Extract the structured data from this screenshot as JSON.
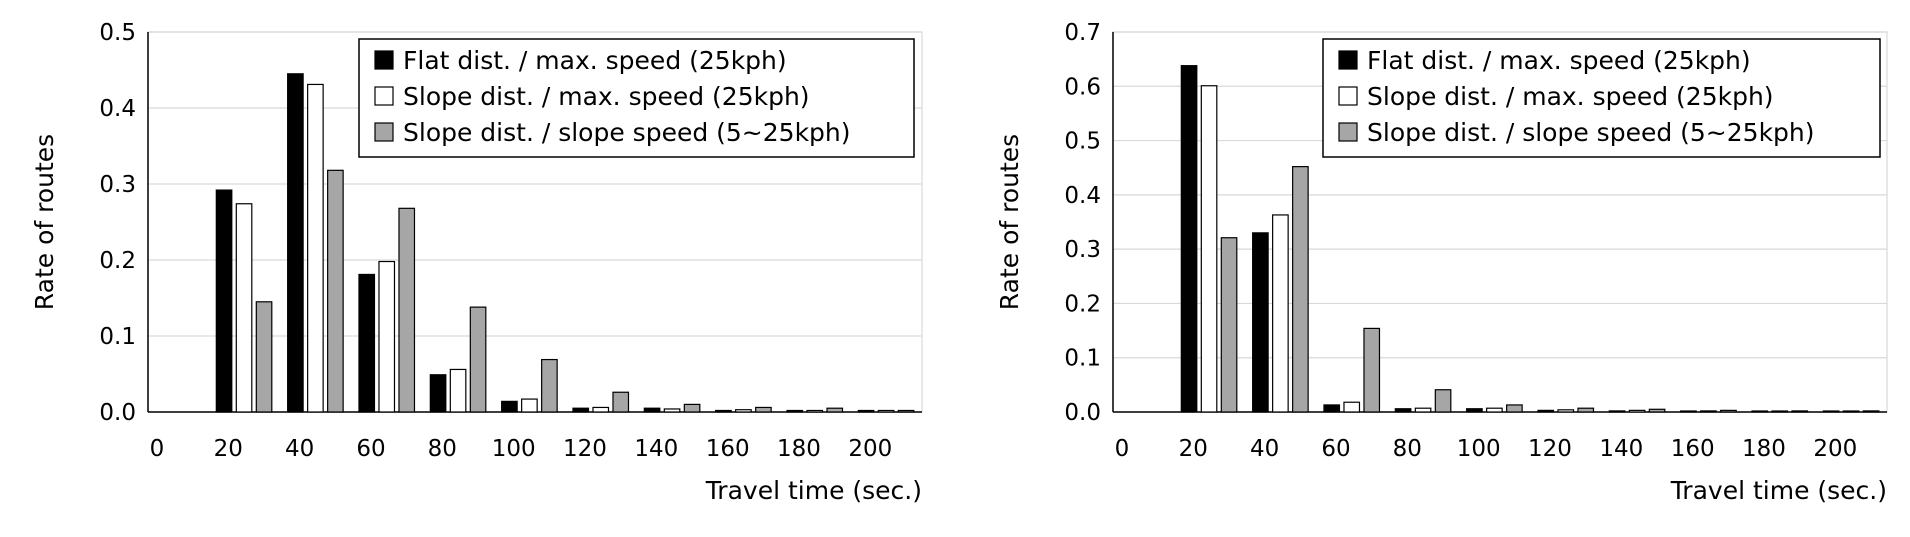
{
  "chart_data": [
    {
      "type": "bar",
      "title": "",
      "xlabel": "Travel time (sec.)",
      "ylabel": "Rate of routes",
      "categories": [
        "0",
        "20",
        "40",
        "60",
        "80",
        "100",
        "120",
        "140",
        "160",
        "180",
        "200"
      ],
      "ylim": [
        0,
        0.5
      ],
      "yticks": [
        "0.0",
        "0.1",
        "0.2",
        "0.3",
        "0.4",
        "0.5"
      ],
      "grid": true,
      "legend": "top-right",
      "series": [
        {
          "name": "Flat dist. / max. speed (25kph)",
          "color": "#000000",
          "values": [
            0,
            0.292,
            0.445,
            0.181,
            0.049,
            0.014,
            0.005,
            0.005,
            0.002,
            0.002,
            0.002
          ]
        },
        {
          "name": "Slope dist. / max. speed (25kph)",
          "color": "#ffffff",
          "values": [
            0,
            0.274,
            0.431,
            0.198,
            0.056,
            0.017,
            0.006,
            0.004,
            0.003,
            0.002,
            0.002
          ]
        },
        {
          "name": "Slope dist. / slope speed (5~25kph)",
          "color": "#a6a6a6",
          "values": [
            0,
            0.145,
            0.318,
            0.268,
            0.138,
            0.069,
            0.026,
            0.01,
            0.006,
            0.005,
            0.002
          ]
        }
      ]
    },
    {
      "type": "bar",
      "title": "",
      "xlabel": "Travel time (sec.)",
      "ylabel": "Rate of routes",
      "categories": [
        "0",
        "20",
        "40",
        "60",
        "80",
        "100",
        "120",
        "140",
        "160",
        "180",
        "200"
      ],
      "ylim": [
        0,
        0.7
      ],
      "yticks": [
        "0.0",
        "0.1",
        "0.2",
        "0.3",
        "0.4",
        "0.5",
        "0.6",
        "0.7"
      ],
      "grid": true,
      "legend": "top-right",
      "series": [
        {
          "name": "Flat dist. / max. speed (25kph)",
          "color": "#000000",
          "values": [
            0,
            0.638,
            0.33,
            0.013,
            0.006,
            0.006,
            0.003,
            0.002,
            0.001,
            0.001,
            0.0005
          ]
        },
        {
          "name": "Slope dist. / max. speed (25kph)",
          "color": "#ffffff",
          "values": [
            0,
            0.601,
            0.363,
            0.018,
            0.007,
            0.007,
            0.004,
            0.003,
            0.002,
            0.001,
            0.0005
          ]
        },
        {
          "name": "Slope dist. / slope speed (5~25kph)",
          "color": "#a6a6a6",
          "values": [
            0,
            0.321,
            0.452,
            0.154,
            0.041,
            0.013,
            0.007,
            0.005,
            0.003,
            0.002,
            0.002
          ]
        }
      ]
    }
  ]
}
